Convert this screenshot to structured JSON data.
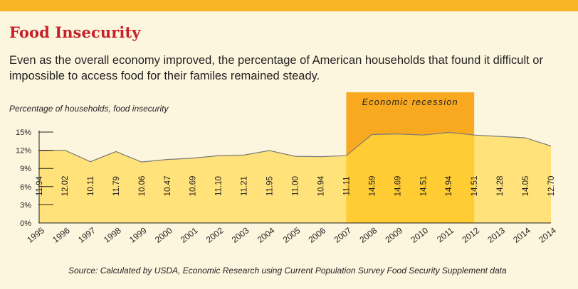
{
  "title": "Food Insecurity",
  "subtitle": "Even as the overall economy improved, the percentage of American households that found it difficult or impossible to access food for their familes remained steady.",
  "source": "Source: Calculated by USDA, Economic Research using Current Population Survey Food Security Supplement data",
  "colors": {
    "top_bar": "#f8b526",
    "title": "#c8202b",
    "background": "#fdf6df",
    "area_fill": "#ffe27a",
    "recession_band": "#f8a91f",
    "recession_area": "#ffcc33"
  },
  "chart_data": {
    "type": "area",
    "ylabel": "Percentage of households, food insecurity",
    "xlabel": "",
    "ylim": [
      0,
      15
    ],
    "yticks": [
      "0%",
      "3%",
      "6%",
      "9%",
      "12%",
      "15%"
    ],
    "grid": false,
    "categories": [
      "1995",
      "1996",
      "1997",
      "1998",
      "1999",
      "2000",
      "2001",
      "2002",
      "2003",
      "2004",
      "2005",
      "2006",
      "2007",
      "2008",
      "2009",
      "2010",
      "2011",
      "2012",
      "2013",
      "2014",
      "2014"
    ],
    "values": [
      11.94,
      12.02,
      10.11,
      11.79,
      10.06,
      10.47,
      10.69,
      11.1,
      11.21,
      11.95,
      11.0,
      10.94,
      11.11,
      14.59,
      14.69,
      14.51,
      14.94,
      14.51,
      14.28,
      14.05,
      12.7
    ],
    "data_labels": [
      "11.94",
      "12.02",
      "10.11",
      "11.79",
      "10.06",
      "10.47",
      "10.69",
      "11.10",
      "11.21",
      "11.95",
      "11.00",
      "10.94",
      "11.11",
      "14.59",
      "14.69",
      "14.51",
      "14.94",
      "14.51",
      "14.28",
      "14.05",
      "12.70"
    ],
    "annotations": [
      {
        "text": "Economic recession",
        "x_start": "2007",
        "x_end": "2012"
      }
    ]
  }
}
